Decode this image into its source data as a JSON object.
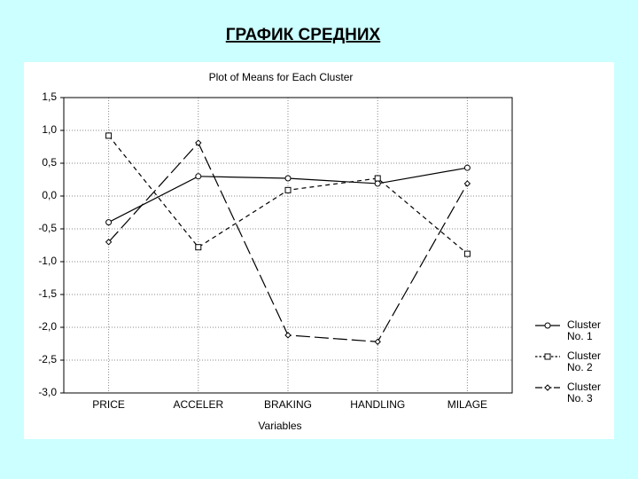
{
  "slide_title": "ГРАФИК СРЕДНИХ",
  "chart_data": {
    "type": "line",
    "title": "Plot of Means for Each Cluster",
    "x_label": "Variables",
    "categories": [
      "PRICE",
      "ACCELER",
      "BRAKING",
      "HANDLING",
      "MILAGE"
    ],
    "series": [
      {
        "name": "Cluster No. 1",
        "color": "#000000",
        "dash": "none",
        "marker": "circle",
        "values": [
          -0.4,
          0.3,
          0.27,
          0.19,
          0.43
        ]
      },
      {
        "name": "Cluster No. 2",
        "color": "#000000",
        "dash": "5,4",
        "marker": "square",
        "values": [
          0.92,
          -0.78,
          0.09,
          0.27,
          -0.88
        ]
      },
      {
        "name": "Cluster No. 3",
        "color": "#000000",
        "dash": "16,5",
        "marker": "diamond",
        "values": [
          -0.7,
          0.81,
          -2.12,
          -2.22,
          0.19
        ]
      }
    ],
    "ylim": [
      -3.0,
      1.5
    ],
    "yticks": [
      {
        "value": 1.5,
        "label": "1,5"
      },
      {
        "value": 1.0,
        "label": "1,0"
      },
      {
        "value": 0.5,
        "label": "0,5"
      },
      {
        "value": 0,
        "label": "0,0"
      },
      {
        "value": -0.5,
        "label": "-0,5"
      },
      {
        "value": -1.0,
        "label": "-1,0"
      },
      {
        "value": -1.5,
        "label": "-1,5"
      },
      {
        "value": -2.0,
        "label": "-2,0"
      },
      {
        "value": -2.5,
        "label": "-2,5"
      },
      {
        "value": -3.0,
        "label": "-3,0"
      }
    ],
    "grid": true,
    "legend": "right"
  }
}
